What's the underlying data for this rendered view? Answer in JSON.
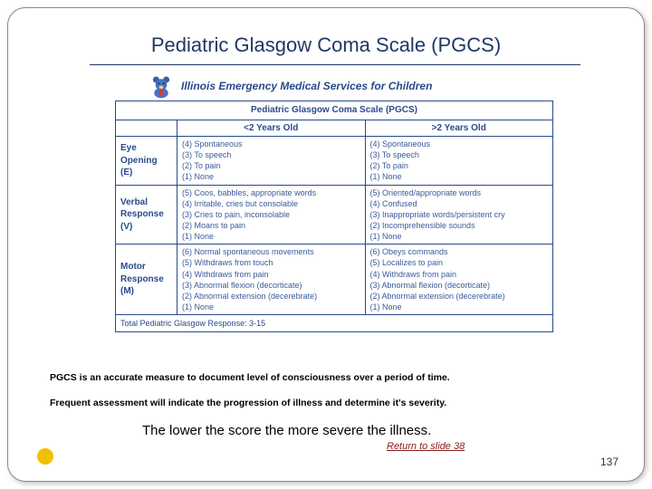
{
  "title": "Pediatric Glasgow Coma Scale (PGCS)",
  "logo_text": "Illinois Emergency Medical Services for Children",
  "table": {
    "header": "Pediatric Glasgow Coma Scale (PGCS)",
    "col_young": "<2 Years Old",
    "col_old": ">2 Years Old",
    "rows": [
      {
        "label": "Eye\nOpening\n(E)",
        "young": [
          "(4) Spontaneous",
          "(3) To speech",
          "(2) To pain",
          "(1) None"
        ],
        "old": [
          "(4) Spontaneous",
          "(3) To speech",
          "(2) To pain",
          "(1) None"
        ]
      },
      {
        "label": "Verbal\nResponse\n(V)",
        "young": [
          "(5) Coos, babbles, appropriate words",
          "(4) Irritable, cries but consolable",
          "(3) Cries to pain, inconsolable",
          "(2) Moans to pain",
          "(1) None"
        ],
        "old": [
          "(5) Oriented/appropriate words",
          "(4) Confused",
          "(3) Inappropriate words/persistent cry",
          "(2) Incomprehensible sounds",
          "(1) None"
        ]
      },
      {
        "label": "Motor\nResponse\n(M)",
        "young": [
          "(6) Normal spontaneous movements",
          "(5) Withdraws from touch",
          "(4) Withdraws from pain",
          "(3) Abnormal flexion (decorticate)",
          "(2) Abnormal extension (decerebrate)",
          "(1) None"
        ],
        "old": [
          "(6) Obeys commands",
          "(5) Localizes to pain",
          "(4) Withdraws from pain",
          "(3) Abnormal flexion (decorticate)",
          "(2) Abnormal extension (decerebrate)",
          "(1) None"
        ]
      }
    ],
    "total": "Total Pediatric Glasgow Response: 3-15"
  },
  "body1": "PGCS is an accurate measure to document level of consciousness over a period of time.",
  "body2": "Frequent assessment will indicate the progression of illness and determine it's severity.",
  "body3": "The lower the score the more severe the illness.",
  "return_link": "Return to slide 38",
  "page_number": "137",
  "colors": {
    "title": "#203864",
    "table_border": "#2a4a8a",
    "table_text": "#3a5a9a",
    "dot": "#f2c000",
    "link": "#8a1a1a"
  }
}
